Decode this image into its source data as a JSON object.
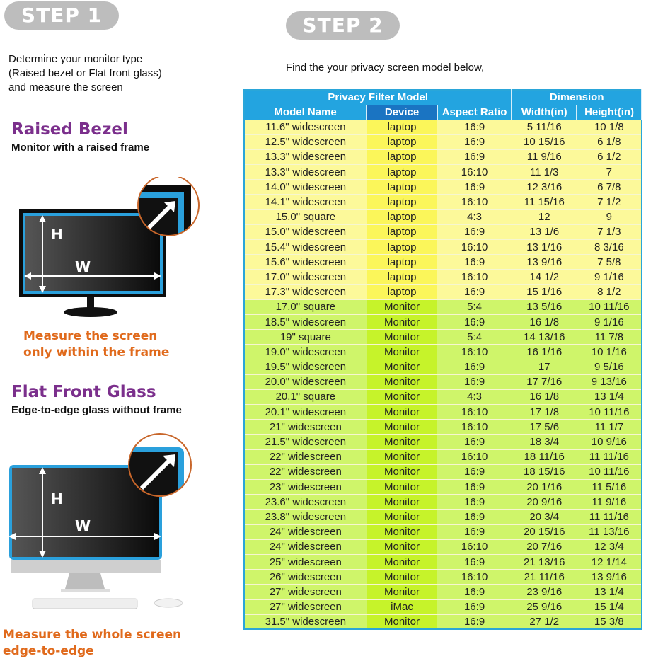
{
  "step1": {
    "label": "STEP 1",
    "instructions": [
      "Determine your monitor type",
      "(Raised bezel or Flat front glass)",
      "and measure the screen"
    ],
    "raised": {
      "title": "Raised Bezel",
      "subtitle": "Monitor with a raised frame",
      "note": [
        "Measure the screen",
        "only within the frame"
      ],
      "h_label": "H",
      "w_label": "W"
    },
    "flat": {
      "title": "Flat Front Glass",
      "subtitle": "Edge-to-edge glass without frame",
      "note": [
        "Measure the whole screen",
        "edge-to-edge"
      ],
      "h_label": "H",
      "w_label": "W"
    }
  },
  "step2": {
    "label": "STEP 2",
    "instruction": "Find the your privacy screen model below,"
  },
  "colors": {
    "header": "#23a4e0",
    "device_header": "#1a74c2",
    "laptop_row": "#fcf99a",
    "monitor_row": "#cff56a",
    "title": "#7b2f8c",
    "note": "#e06a1c"
  },
  "table": {
    "group_headers": [
      "Privacy Filter Model",
      "Dimension"
    ],
    "columns": [
      "Model Name",
      "Device",
      "Aspect Ratio",
      "Width(in)",
      "Height(in)"
    ],
    "rows": [
      [
        "11.6\" widescreen",
        "laptop",
        "16:9",
        "5 11/16",
        "10 1/8"
      ],
      [
        "12.5\" widescreen",
        "laptop",
        "16:9",
        "10 15/16",
        "6 1/8"
      ],
      [
        "13.3\" widescreen",
        "laptop",
        "16:9",
        "11 9/16",
        "6 1/2"
      ],
      [
        "13.3\" widescreen",
        "laptop",
        "16:10",
        "11 1/3",
        "7"
      ],
      [
        "14.0\" widescreen",
        "laptop",
        "16:9",
        "12 3/16",
        "6 7/8"
      ],
      [
        "14.1\" widescreen",
        "laptop",
        "16:10",
        "11 15/16",
        "7 1/2"
      ],
      [
        "15.0\" square",
        "laptop",
        "4:3",
        "12",
        "9"
      ],
      [
        "15.0\" widescreen",
        "laptop",
        "16:9",
        "13 1/6",
        "7 1/3"
      ],
      [
        "15.4\" widescreen",
        "laptop",
        "16:10",
        "13 1/16",
        "8 3/16"
      ],
      [
        "15.6\" widescreen",
        "laptop",
        "16:9",
        "13 9/16",
        "7 5/8"
      ],
      [
        "17.0\" widescreen",
        "laptop",
        "16:10",
        "14 1/2",
        "9 1/16"
      ],
      [
        "17.3\" widescreen",
        "laptop",
        "16:9",
        "15 1/16",
        "8 1/2"
      ],
      [
        "17.0\" square",
        "Monitor",
        "5:4",
        "13 5/16",
        "10 11/16"
      ],
      [
        "18.5\" widescreen",
        "Monitor",
        "16:9",
        "16 1/8",
        "9 1/16"
      ],
      [
        "19\" square",
        "Monitor",
        "5:4",
        "14 13/16",
        "11 7/8"
      ],
      [
        "19.0\" widescreen",
        "Monitor",
        "16:10",
        "16 1/16",
        "10 1/16"
      ],
      [
        "19.5\" widescreen",
        "Monitor",
        "16:9",
        "17",
        "9 5/16"
      ],
      [
        "20.0\" widescreen",
        "Monitor",
        "16:9",
        "17 7/16",
        "9 13/16"
      ],
      [
        "20.1\" square",
        "Monitor",
        "4:3",
        "16 1/8",
        "13 1/4"
      ],
      [
        "20.1\" widescreen",
        "Monitor",
        "16:10",
        "17 1/8",
        "10 11/16"
      ],
      [
        "21\" widescreen",
        "Monitor",
        "16:10",
        "17 5/6",
        "11 1/7"
      ],
      [
        "21.5\" widescreen",
        "Monitor",
        "16:9",
        "18 3/4",
        "10 9/16"
      ],
      [
        "22\" widescreen",
        "Monitor",
        "16:10",
        "18 11/16",
        "11 11/16"
      ],
      [
        "22\" widescreen",
        "Monitor",
        "16:9",
        "18 15/16",
        "10 11/16"
      ],
      [
        "23\" widescreen",
        "Monitor",
        "16:9",
        "20 1/16",
        "11 5/16"
      ],
      [
        "23.6\" widescreen",
        "Monitor",
        "16:9",
        "20 9/16",
        "11 9/16"
      ],
      [
        "23.8\" widescreen",
        "Monitor",
        "16:9",
        "20 3/4",
        "11 11/16"
      ],
      [
        "24\" widescreen",
        "Monitor",
        "16:9",
        "20 15/16",
        "11 13/16"
      ],
      [
        "24\" widescreen",
        "Monitor",
        "16:10",
        "20 7/16",
        "12 3/4"
      ],
      [
        "25\" widescreen",
        "Monitor",
        "16:9",
        "21 13/16",
        "12 1/14"
      ],
      [
        "26\" widescreen",
        "Monitor",
        "16:10",
        "21 11/16",
        "13 9/16"
      ],
      [
        "27\" widescreen",
        "Monitor",
        "16:9",
        "23 9/16",
        "13 1/4"
      ],
      [
        "27\" widescreen",
        "iMac",
        "16:9",
        "25 9/16",
        "15 1/4"
      ],
      [
        "31.5\" widescreen",
        "Monitor",
        "16:9",
        "27 1/2",
        "15 3/8"
      ]
    ]
  }
}
